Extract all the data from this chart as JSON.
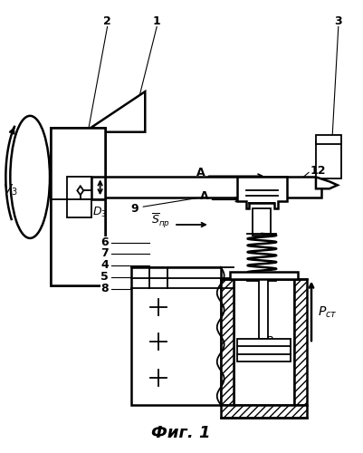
{
  "bg_color": "#ffffff",
  "line_color": "#000000",
  "fig_label": "Фиг. 1"
}
